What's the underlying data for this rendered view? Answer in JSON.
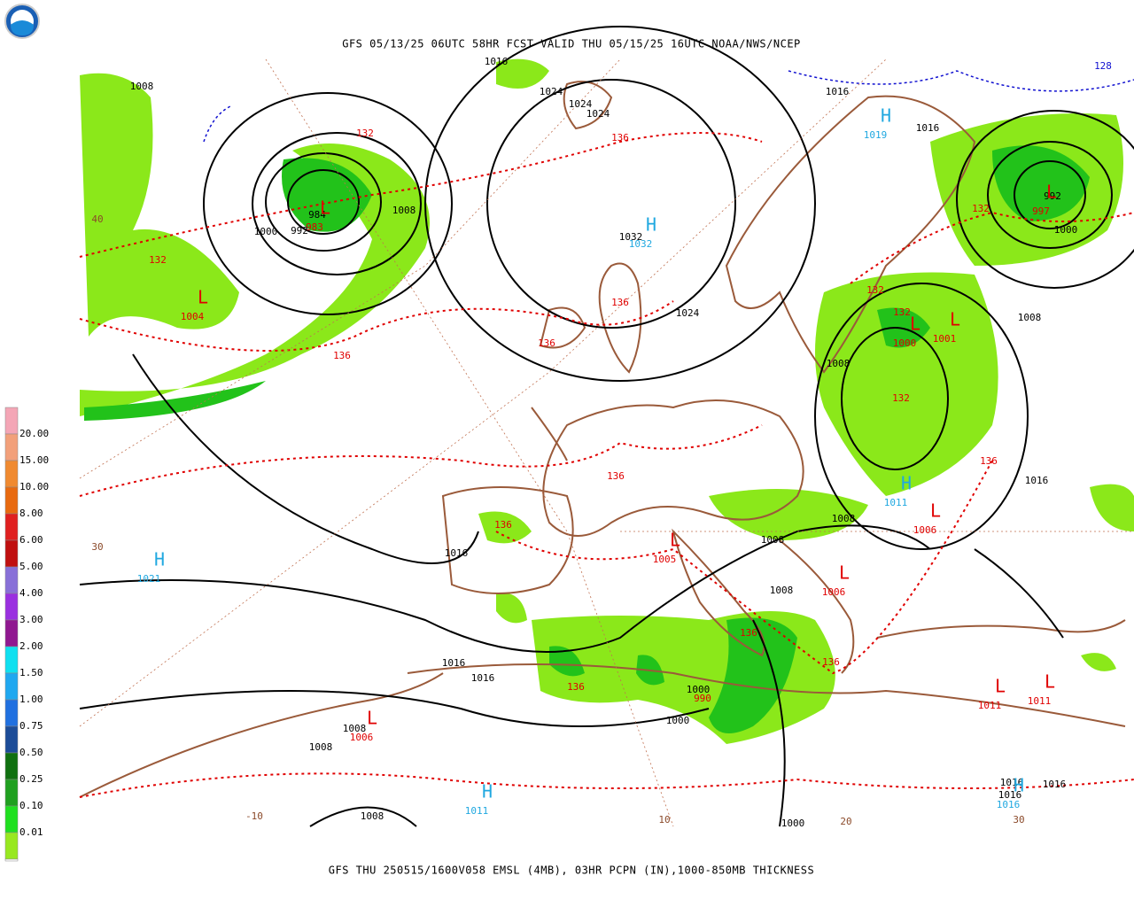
{
  "header": {
    "title": "GFS 05/13/25 06UTC 58HR FCST VALID THU 05/15/25 16UTC NOAA/NWS/NCEP"
  },
  "footer": {
    "caption": "GFS THU 250515/1600V058 EMSL (4MB), 03HR PCPN (IN),1000-850MB THICKNESS"
  },
  "legend": {
    "top_color": "#f4a6b6",
    "levels": [
      {
        "label": "20.00",
        "color": "#f2a07a"
      },
      {
        "label": "15.00",
        "color": "#f08a30"
      },
      {
        "label": "10.00",
        "color": "#e86a10"
      },
      {
        "label": "8.00",
        "color": "#e02020"
      },
      {
        "label": "6.00",
        "color": "#c01010"
      },
      {
        "label": "5.00",
        "color": "#8870d8"
      },
      {
        "label": "4.00",
        "color": "#9a30e0"
      },
      {
        "label": "3.00",
        "color": "#901890"
      },
      {
        "label": "2.00",
        "color": "#10e0f0"
      },
      {
        "label": "1.50",
        "color": "#20a8f0"
      },
      {
        "label": "1.00",
        "color": "#2070e0"
      },
      {
        "label": "0.75",
        "color": "#1c4c98"
      },
      {
        "label": "0.50",
        "color": "#107010"
      },
      {
        "label": "0.25",
        "color": "#20a020"
      },
      {
        "label": "0.10",
        "color": "#20e020"
      },
      {
        "label": "0.01",
        "color": "#98e820"
      }
    ],
    "bottom_color": "#ffffff"
  },
  "map": {
    "isobar_labels": {
      "color": "#000000",
      "items": [
        "1016",
        "1008",
        "1024",
        "1024",
        "1024",
        "1016",
        "1016",
        "1000",
        "992",
        "984",
        "1008",
        "1032",
        "1024",
        "1008",
        "1008",
        "1016",
        "1008",
        "1008",
        "1008",
        "1016",
        "1016",
        "1016",
        "1000",
        "1000",
        "1008",
        "1008",
        "1008",
        "1000",
        "992",
        "1000",
        "1016",
        "1016",
        "1016"
      ]
    },
    "highs": {
      "color": "#20a8e0",
      "items": [
        {
          "letter": "H",
          "value": "1032"
        },
        {
          "letter": "H",
          "value": "1019"
        },
        {
          "letter": "H",
          "value": "1021"
        },
        {
          "letter": "H",
          "value": "1011"
        },
        {
          "letter": "H",
          "value": "1011"
        },
        {
          "letter": "H",
          "value": "1016"
        }
      ]
    },
    "lows": {
      "color": "#e00000",
      "items": [
        {
          "letter": "L",
          "value": "1004"
        },
        {
          "letter": "L",
          "value": "983"
        },
        {
          "letter": "L",
          "value": "997"
        },
        {
          "letter": "L",
          "value": "1000"
        },
        {
          "letter": "L",
          "value": "1001"
        },
        {
          "letter": "L",
          "value": "1006"
        },
        {
          "letter": "L",
          "value": "1005"
        },
        {
          "letter": "L",
          "value": "1006"
        },
        {
          "letter": "L",
          "value": "1011"
        },
        {
          "letter": "L",
          "value": "1011"
        },
        {
          "letter": "L",
          "value": "1006"
        }
      ]
    },
    "thickness_labels": {
      "color": "#e00000",
      "items": [
        "132",
        "132",
        "136",
        "136",
        "136",
        "136",
        "132",
        "132",
        "132",
        "132",
        "136",
        "136",
        "136",
        "136",
        "136",
        "136",
        "990"
      ]
    },
    "temperature_labels": {
      "color": "#8b4a2a",
      "items": [
        "40",
        "30",
        "-10",
        "10",
        "20",
        "30"
      ]
    },
    "dashed_labels": {
      "color": "#1010d0",
      "items": [
        "128"
      ]
    }
  }
}
